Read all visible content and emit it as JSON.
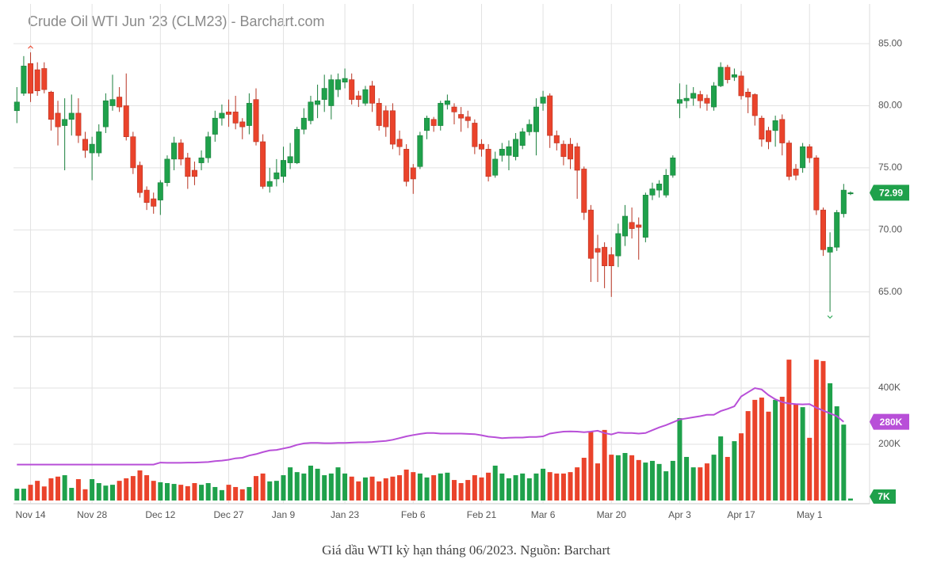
{
  "chart_data": {
    "type": "candlestick",
    "title": "Crude Oil WTI Jun '23 (CLM23) - Barchart.com",
    "categories": [
      null,
      null,
      "Nov 14",
      null,
      null,
      null,
      null,
      null,
      null,
      null,
      null,
      "Nov 28",
      null,
      null,
      null,
      null,
      null,
      null,
      null,
      null,
      null,
      "Dec 12",
      null,
      null,
      null,
      null,
      null,
      null,
      null,
      null,
      null,
      "Dec 27",
      null,
      null,
      null,
      null,
      null,
      null,
      null,
      "Jan 9",
      null,
      null,
      null,
      null,
      null,
      null,
      null,
      null,
      "Jan 23",
      null,
      null,
      null,
      null,
      null,
      null,
      null,
      null,
      null,
      "Feb 6",
      null,
      null,
      null,
      null,
      null,
      null,
      null,
      null,
      null,
      "Feb 21",
      null,
      null,
      null,
      null,
      null,
      null,
      null,
      null,
      "Mar 6",
      null,
      null,
      null,
      null,
      null,
      null,
      null,
      null,
      null,
      "Mar 20",
      null,
      null,
      null,
      null,
      null,
      null,
      null,
      null,
      null,
      "Apr 3",
      null,
      null,
      null,
      null,
      null,
      null,
      null,
      null,
      "Apr 17",
      null,
      null,
      null,
      null,
      null,
      null,
      null,
      null,
      null,
      "May 1",
      null,
      null,
      null,
      null,
      null,
      null
    ],
    "open": [
      79.6,
      81.0,
      83.4,
      82.9,
      83.0,
      81.1,
      79.4,
      78.4,
      78.9,
      79.4,
      77.3,
      76.2,
      76.2,
      78.3,
      80.0,
      80.7,
      80.0,
      77.5,
      75.2,
      73.2,
      72.5,
      72.4,
      73.8,
      75.7,
      77.0,
      75.8,
      74.8,
      75.4,
      75.8,
      77.7,
      79.0,
      79.5,
      79.5,
      78.7,
      78.4,
      80.5,
      77.1,
      73.5,
      74.1,
      74.3,
      75.4,
      75.4,
      78.1,
      78.8,
      80.1,
      80.5,
      80.0,
      81.3,
      81.9,
      82.1,
      80.8,
      80.2,
      81.6,
      80.2,
      79.6,
      79.6,
      77.3,
      76.5,
      75.0,
      75.1,
      78.0,
      78.9,
      78.4,
      80.1,
      79.9,
      79.3,
      79.1,
      78.6,
      76.9,
      76.5,
      74.4,
      76.0,
      76.0,
      75.9,
      76.8,
      77.9,
      77.9,
      80.2,
      80.8,
      77.6,
      76.9,
      76.9,
      76.7,
      74.9,
      71.6,
      68.5,
      68.6,
      68.0,
      67.9,
      69.5,
      70.6,
      70.4,
      69.4,
      72.8,
      73.2,
      72.8,
      74.4,
      80.2,
      80.4,
      80.6,
      80.9,
      80.6,
      79.9,
      81.6,
      83.1,
      82.3,
      82.4,
      81.1,
      80.9,
      79.0,
      78.0,
      78.0,
      78.9,
      77.0,
      74.9,
      75.0,
      76.7,
      75.8,
      71.6,
      68.2,
      68.6,
      71.3,
      72.9
    ],
    "high": [
      81.5,
      84.0,
      84.3,
      83.5,
      83.5,
      81.2,
      80.4,
      80.6,
      80.9,
      80.6,
      77.9,
      77.5,
      78.5,
      81.0,
      82.5,
      81.5,
      82.6,
      77.9,
      75.5,
      73.5,
      73.0,
      74.0,
      76.0,
      77.5,
      77.3,
      76.2,
      75.5,
      76.4,
      77.9,
      79.6,
      80.1,
      80.5,
      80.8,
      79.0,
      81.0,
      81.4,
      77.7,
      75.0,
      75.7,
      76.7,
      77.0,
      78.3,
      79.8,
      80.8,
      81.7,
      82.5,
      82.5,
      82.6,
      83.0,
      82.6,
      81.2,
      81.6,
      82.0,
      80.6,
      80.0,
      80.2,
      78.0,
      76.9,
      75.3,
      77.9,
      79.2,
      79.1,
      80.4,
      80.9,
      80.2,
      79.9,
      79.6,
      78.9,
      77.3,
      76.9,
      76.3,
      77.0,
      77.2,
      77.8,
      78.2,
      78.9,
      80.6,
      81.2,
      81.0,
      78.0,
      77.2,
      77.4,
      77.0,
      75.1,
      72.0,
      69.6,
      69.0,
      68.6,
      70.5,
      72.0,
      71.8,
      71.0,
      73.0,
      73.8,
      74.0,
      74.9,
      76.0,
      81.8,
      81.7,
      81.5,
      81.2,
      80.9,
      81.9,
      83.5,
      83.3,
      83.0,
      82.8,
      81.4,
      81.0,
      79.2,
      78.3,
      79.2,
      79.3,
      77.2,
      75.3,
      77.0,
      76.9,
      76.0,
      71.8,
      69.8,
      71.6,
      73.7,
      73.1
    ],
    "low": [
      78.6,
      80.8,
      80.3,
      80.8,
      81.0,
      78.0,
      76.8,
      74.8,
      77.6,
      77.0,
      75.8,
      74.0,
      75.9,
      77.8,
      79.6,
      79.5,
      77.2,
      74.5,
      72.6,
      71.6,
      71.3,
      71.2,
      73.5,
      74.8,
      75.2,
      73.3,
      73.6,
      74.8,
      75.4,
      77.1,
      78.4,
      78.3,
      78.1,
      77.3,
      77.7,
      76.8,
      73.3,
      73.0,
      73.5,
      73.8,
      74.9,
      75.3,
      77.7,
      78.5,
      79.0,
      79.5,
      78.9,
      80.7,
      81.4,
      80.1,
      79.9,
      80.0,
      79.5,
      78.0,
      77.5,
      76.5,
      76.0,
      73.5,
      72.9,
      74.9,
      77.3,
      77.9,
      78.0,
      79.7,
      78.5,
      77.9,
      78.2,
      76.1,
      75.9,
      73.9,
      74.2,
      75.5,
      74.8,
      75.6,
      76.5,
      77.6,
      76.0,
      79.6,
      76.6,
      76.4,
      75.2,
      74.9,
      72.5,
      70.8,
      65.8,
      65.8,
      65.3,
      64.6,
      67.0,
      68.7,
      69.3,
      67.6,
      69.0,
      72.4,
      72.6,
      72.6,
      74.2,
      79.0,
      79.8,
      80.0,
      79.8,
      79.6,
      79.6,
      81.5,
      81.8,
      82.0,
      80.5,
      79.4,
      78.4,
      76.7,
      76.5,
      76.7,
      76.0,
      74.0,
      74.0,
      74.6,
      75.4,
      71.2,
      67.9,
      63.4,
      68.3,
      71.0,
      72.8
    ],
    "close": [
      80.3,
      83.2,
      81.0,
      81.2,
      81.3,
      78.9,
      78.3,
      78.9,
      79.4,
      77.6,
      76.4,
      76.9,
      77.9,
      80.4,
      80.5,
      79.9,
      77.5,
      75.0,
      73.0,
      72.2,
      71.9,
      73.8,
      75.7,
      77.0,
      75.7,
      74.3,
      74.3,
      75.8,
      77.5,
      79.0,
      79.4,
      79.3,
      78.6,
      78.3,
      80.2,
      77.1,
      73.5,
      73.9,
      74.6,
      75.6,
      75.9,
      78.1,
      79.0,
      80.3,
      80.4,
      81.4,
      82.1,
      82.1,
      82.2,
      80.5,
      80.5,
      81.3,
      80.2,
      78.4,
      78.3,
      76.9,
      76.7,
      73.9,
      74.1,
      77.6,
      79.0,
      78.4,
      80.2,
      80.4,
      79.5,
      79.0,
      78.8,
      76.7,
      76.5,
      74.3,
      75.7,
      76.5,
      76.7,
      77.3,
      77.9,
      78.5,
      79.9,
      80.7,
      77.6,
      77.0,
      75.9,
      75.7,
      74.8,
      71.4,
      67.7,
      68.2,
      67.1,
      67.1,
      69.7,
      71.1,
      70.1,
      70.2,
      72.8,
      73.3,
      73.7,
      74.4,
      75.8,
      80.5,
      80.6,
      81.0,
      80.4,
      80.2,
      81.6,
      83.1,
      82.1,
      82.5,
      80.8,
      80.7,
      79.2,
      77.3,
      77.1,
      78.8,
      77.0,
      74.3,
      74.4,
      76.7,
      75.8,
      71.6,
      68.4,
      68.6,
      71.4,
      73.2,
      72.99
    ],
    "colors": {
      "up": "#1fa14b",
      "down": "#ea432b"
    },
    "ylim": [
      61.4,
      88.2
    ],
    "yticks": [
      {
        "value": 65,
        "label": "65.00"
      },
      {
        "value": 70,
        "label": "70.00"
      },
      {
        "value": 75,
        "label": "75.00"
      },
      {
        "value": 80,
        "label": "80.00"
      },
      {
        "value": 85,
        "label": "85.00"
      }
    ],
    "grid": true,
    "volume": {
      "values": [
        42000,
        42000,
        56000,
        70000,
        50000,
        79000,
        85000,
        90000,
        45000,
        76000,
        40000,
        76000,
        62000,
        53000,
        56000,
        70000,
        79000,
        87000,
        107000,
        90000,
        70000,
        65000,
        62000,
        59000,
        56000,
        51000,
        62000,
        56000,
        62000,
        48000,
        37000,
        56000,
        48000,
        40000,
        48000,
        87000,
        96000,
        68000,
        70000,
        90000,
        118000,
        101000,
        96000,
        124000,
        113000,
        90000,
        96000,
        118000,
        96000,
        85000,
        68000,
        82000,
        85000,
        68000,
        79000,
        85000,
        90000,
        110000,
        101000,
        96000,
        82000,
        90000,
        96000,
        99000,
        73000,
        62000,
        73000,
        90000,
        82000,
        99000,
        124000,
        96000,
        79000,
        90000,
        96000,
        79000,
        96000,
        113000,
        101000,
        96000,
        96000,
        101000,
        118000,
        152000,
        245000,
        132000,
        251000,
        163000,
        161000,
        169000,
        161000,
        144000,
        135000,
        141000,
        130000,
        104000,
        141000,
        293000,
        155000,
        118000,
        118000,
        132000,
        163000,
        228000,
        155000,
        211000,
        239000,
        318000,
        358000,
        366000,
        316000,
        358000,
        369000,
        501000,
        344000,
        332000,
        223000,
        501000,
        496000,
        417000,
        335000,
        270000,
        7000
      ],
      "last_label": "7K",
      "ylim": [
        0,
        583000
      ],
      "yticks": [
        {
          "value": 200000,
          "label": "200K"
        },
        {
          "value": 400000,
          "label": "400K"
        }
      ],
      "moving_average": {
        "color": "#b84fd8",
        "values": [
          128000,
          128000,
          128000,
          128000,
          128000,
          128000,
          128000,
          128000,
          128000,
          128000,
          128000,
          128000,
          128000,
          128000,
          128000,
          128000,
          128000,
          128000,
          128000,
          128000,
          128000,
          135000,
          134000,
          134000,
          134000,
          135000,
          135000,
          136000,
          137000,
          140000,
          142000,
          145000,
          150000,
          152000,
          160000,
          165000,
          172000,
          178000,
          180000,
          185000,
          190000,
          198000,
          203000,
          205000,
          205000,
          204000,
          204000,
          205000,
          205000,
          206000,
          207000,
          207000,
          208000,
          210000,
          212000,
          216000,
          222000,
          228000,
          233000,
          237000,
          240000,
          240000,
          238000,
          238000,
          238000,
          238000,
          237000,
          236000,
          232000,
          227000,
          225000,
          222000,
          223000,
          224000,
          224000,
          226000,
          226000,
          228000,
          238000,
          242000,
          245000,
          246000,
          245000,
          243000,
          245000,
          248000,
          240000,
          235000,
          242000,
          240000,
          240000,
          238000,
          240000,
          250000,
          260000,
          268000,
          278000,
          288000,
          292000,
          296000,
          300000,
          305000,
          305000,
          318000,
          326000,
          335000,
          370000,
          385000,
          400000,
          395000,
          375000,
          360000,
          350000,
          345000,
          343000,
          342000,
          343000,
          330000,
          320000,
          310000,
          300000,
          280000,
          null
        ],
        "last_label": "280K"
      }
    }
  },
  "caption": "Giá dầu WTI kỳ hạn tháng 06/2023. Nguồn: Barchart"
}
